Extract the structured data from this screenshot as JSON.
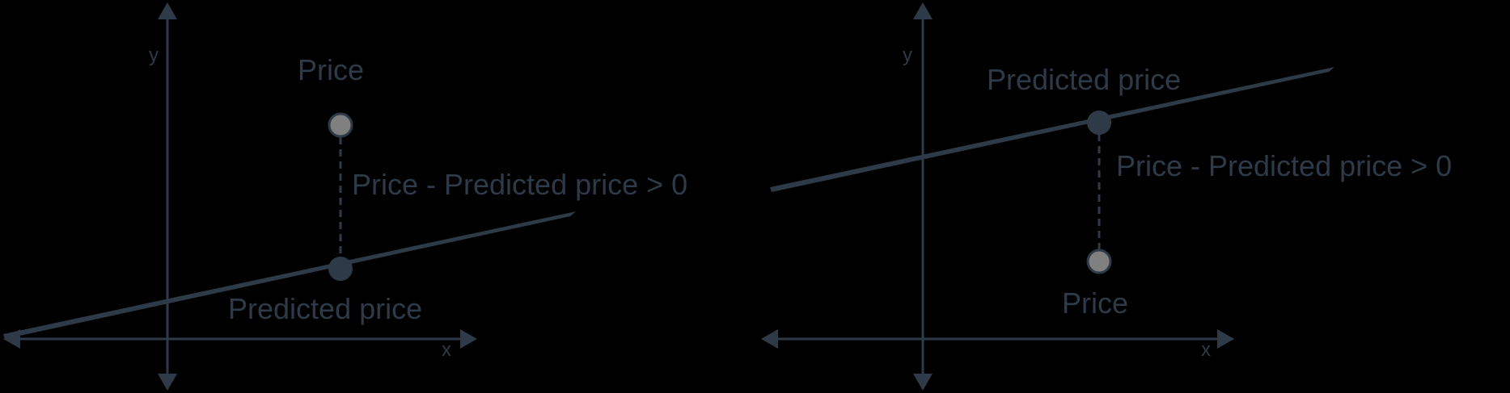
{
  "colors": {
    "background": "#000000",
    "ink": "#2e3a47",
    "actual_point_fill": "#808080"
  },
  "left_panel": {
    "y_label": "y",
    "x_label": "x",
    "price_label": "Price",
    "predicted_label": "Predicted price",
    "residual_label": "Price - Predicted price > 0"
  },
  "right_panel": {
    "y_label": "y",
    "x_label": "x",
    "price_label": "Price",
    "predicted_label": "Predicted price",
    "residual_label": "Price - Predicted price > 0"
  }
}
